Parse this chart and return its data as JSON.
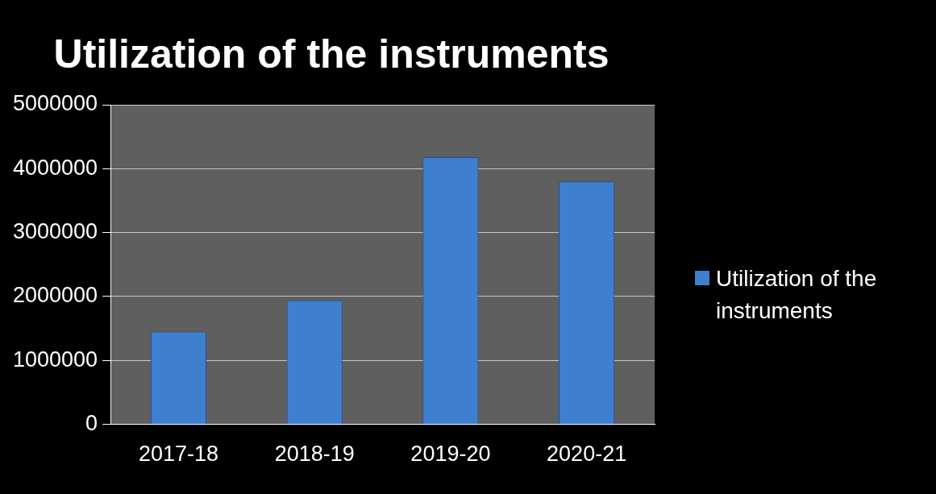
{
  "chart_data": {
    "type": "bar",
    "title": "Utilization of the instruments",
    "categories": [
      "2017-18",
      "2018-19",
      "2019-20",
      "2020-21"
    ],
    "series": [
      {
        "name": "Utilization of the instruments",
        "color": "#3f7fd0",
        "values": [
          1450000,
          1940000,
          4180000,
          3800000
        ]
      }
    ],
    "ylim": [
      0,
      5000000
    ],
    "yticks": [
      0,
      1000000,
      2000000,
      3000000,
      4000000,
      5000000
    ],
    "grid": "y",
    "legend": "right"
  }
}
